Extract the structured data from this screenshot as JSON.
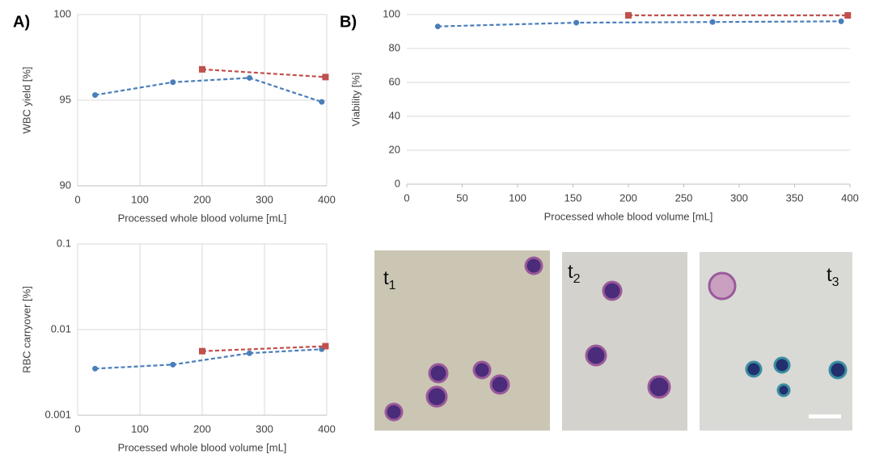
{
  "panel_labels": [
    "A)",
    "B)"
  ],
  "chart_data": [
    {
      "type": "line",
      "xlabel": "Processed whole blood volume [mL]",
      "ylabel": "WBC yield [%]",
      "xlim": [
        0,
        400
      ],
      "xticks": [
        0,
        100,
        200,
        300,
        400
      ],
      "ylim": [
        90,
        100
      ],
      "yticks": [
        90,
        95,
        100
      ],
      "grid": "both",
      "series": [
        {
          "color": "#4a7ebb",
          "marker": "circle",
          "x": [
            28,
            153,
            276,
            392
          ],
          "values": [
            95.3,
            96.05,
            96.3,
            94.9
          ]
        },
        {
          "color": "#c0504d",
          "marker": "square",
          "x": [
            200,
            398
          ],
          "values": [
            96.8,
            96.35
          ]
        }
      ]
    },
    {
      "type": "line",
      "xlabel": "Processed whole blood volume [mL]",
      "ylabel": "Viability [%]",
      "xlim": [
        0,
        400
      ],
      "xticks": [
        0,
        50,
        100,
        150,
        200,
        250,
        300,
        350,
        400
      ],
      "ylim": [
        0,
        100
      ],
      "yticks": [
        0,
        20,
        40,
        60,
        80,
        100
      ],
      "grid": "y",
      "series": [
        {
          "color": "#4a7ebb",
          "marker": "circle",
          "x": [
            28,
            153,
            276,
            392
          ],
          "values": [
            93,
            95.2,
            95.6,
            96
          ]
        },
        {
          "color": "#c0504d",
          "marker": "square",
          "x": [
            200,
            398
          ],
          "values": [
            99.5,
            99.5
          ]
        }
      ]
    },
    {
      "type": "line",
      "xlabel": "Processed whole blood volume [mL]",
      "ylabel": "RBC carryover [%]",
      "xlim": [
        0,
        400
      ],
      "xticks": [
        0,
        100,
        200,
        300,
        400
      ],
      "ylim": [
        0.001,
        0.1
      ],
      "yticks": [
        0.001,
        0.01,
        0.1
      ],
      "log_y": true,
      "grid": "both",
      "series": [
        {
          "color": "#4a7ebb",
          "marker": "circle",
          "x": [
            28,
            153,
            276,
            392
          ],
          "values": [
            0.0035,
            0.0039,
            0.0053,
            0.0059
          ]
        },
        {
          "color": "#c0504d",
          "marker": "square",
          "x": [
            200,
            398
          ],
          "values": [
            0.0056,
            0.0064
          ]
        }
      ]
    }
  ],
  "images": [
    {
      "label": "t",
      "subscript": "1"
    },
    {
      "label": "t",
      "subscript": "2"
    },
    {
      "label": "t",
      "subscript": "3"
    }
  ]
}
